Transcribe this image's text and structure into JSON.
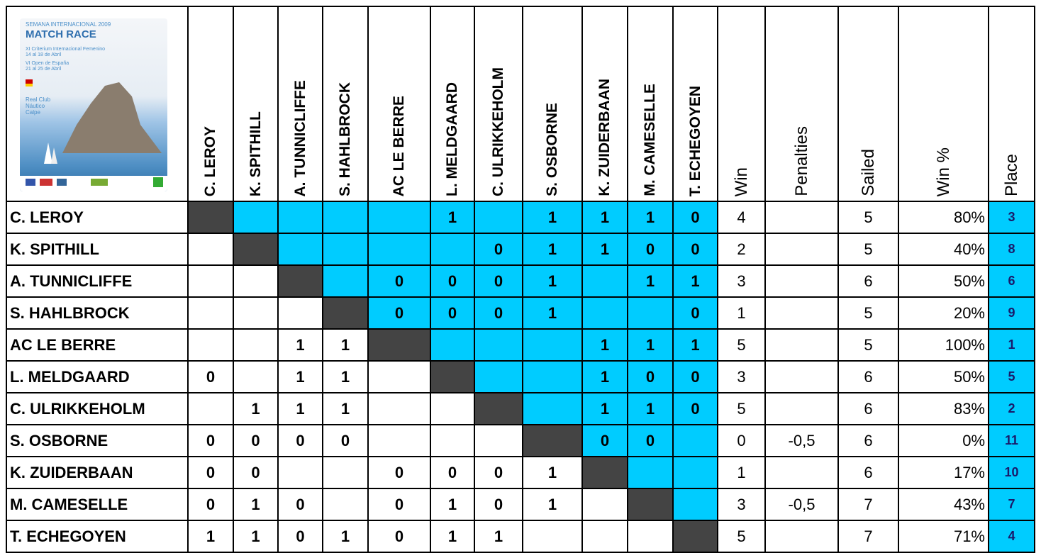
{
  "poster": {
    "edition": "SEMANA INTERNACIONAL 2009",
    "title": "MATCH RACE",
    "line1": "XI Criterium Internacional Femenino",
    "date1": "14 al 18 de Abril",
    "line2": "VI Open de España",
    "date2": "21 al 25 de Abril",
    "club": "Real Club Náutico Calpe"
  },
  "table": {
    "columns": [
      "Win",
      "Penalties",
      "Sailed",
      "Win %",
      "Place"
    ],
    "rows": [
      {
        "name": "C. LEROY",
        "results": [
          null,
          null,
          null,
          null,
          null,
          1,
          null,
          1,
          1,
          1,
          0
        ],
        "win": 4,
        "penalties": null,
        "sailed": 5,
        "win_pct": "80%",
        "place": 3
      },
      {
        "name": "K. SPITHILL",
        "results": [
          null,
          null,
          null,
          null,
          null,
          null,
          0,
          1,
          1,
          0,
          0
        ],
        "win": 2,
        "penalties": null,
        "sailed": 5,
        "win_pct": "40%",
        "place": 8
      },
      {
        "name": "A. TUNNICLIFFE",
        "results": [
          null,
          null,
          null,
          null,
          0,
          0,
          0,
          1,
          null,
          1,
          1
        ],
        "win": 3,
        "penalties": null,
        "sailed": 6,
        "win_pct": "50%",
        "place": 6
      },
      {
        "name": "S. HAHLBROCK",
        "results": [
          null,
          null,
          null,
          null,
          0,
          0,
          0,
          1,
          null,
          null,
          0
        ],
        "win": 1,
        "penalties": null,
        "sailed": 5,
        "win_pct": "20%",
        "place": 9
      },
      {
        "name": "AC LE BERRE",
        "results": [
          null,
          null,
          1,
          1,
          null,
          null,
          null,
          null,
          1,
          1,
          1
        ],
        "win": 5,
        "penalties": null,
        "sailed": 5,
        "win_pct": "100%",
        "place": 1
      },
      {
        "name": "L. MELDGAARD",
        "results": [
          0,
          null,
          1,
          1,
          null,
          null,
          null,
          null,
          1,
          0,
          0
        ],
        "win": 3,
        "penalties": null,
        "sailed": 6,
        "win_pct": "50%",
        "place": 5
      },
      {
        "name": "C. ULRIKKEHOLM",
        "results": [
          null,
          1,
          1,
          1,
          null,
          null,
          null,
          null,
          1,
          1,
          0
        ],
        "win": 5,
        "penalties": null,
        "sailed": 6,
        "win_pct": "83%",
        "place": 2
      },
      {
        "name": "S. OSBORNE",
        "results": [
          0,
          0,
          0,
          0,
          null,
          null,
          null,
          null,
          0,
          0,
          null
        ],
        "win": 0,
        "penalties": "-0,5",
        "sailed": 6,
        "win_pct": "0%",
        "place": 11
      },
      {
        "name": "K. ZUIDERBAAN",
        "results": [
          0,
          0,
          null,
          null,
          0,
          0,
          0,
          1,
          null,
          null,
          null
        ],
        "win": 1,
        "penalties": null,
        "sailed": 6,
        "win_pct": "17%",
        "place": 10
      },
      {
        "name": "M. CAMESELLE",
        "results": [
          0,
          1,
          0,
          null,
          0,
          1,
          0,
          1,
          null,
          null,
          null
        ],
        "win": 3,
        "penalties": "-0,5",
        "sailed": 7,
        "win_pct": "43%",
        "place": 7
      },
      {
        "name": "T. ECHEGOYEN",
        "results": [
          1,
          1,
          0,
          1,
          0,
          1,
          1,
          null,
          null,
          null,
          null
        ],
        "win": 5,
        "penalties": null,
        "sailed": 7,
        "win_pct": "71%",
        "place": 4
      }
    ]
  }
}
